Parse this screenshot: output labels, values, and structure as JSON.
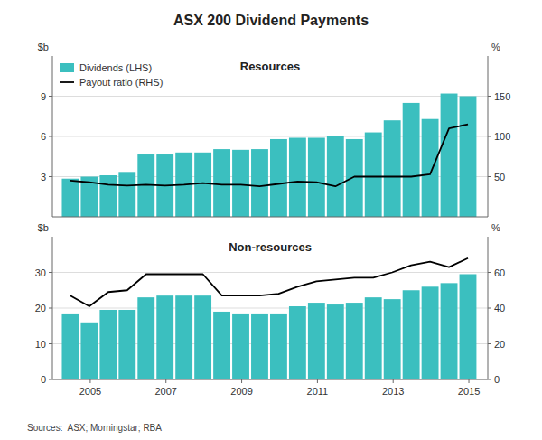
{
  "chart_data": [
    {
      "type": "bar",
      "title": "ASX 200 Dividend Payments",
      "subtitle": "Resources",
      "ylabel": "$b",
      "y2label": "%",
      "x": [
        2004.475,
        2004.975,
        2005.475,
        2005.975,
        2006.475,
        2006.975,
        2007.475,
        2007.975,
        2008.475,
        2008.975,
        2009.475,
        2009.975,
        2010.475,
        2010.975,
        2011.475,
        2011.975,
        2012.475,
        2012.975,
        2013.475,
        2013.975,
        2014.475,
        2014.975
      ],
      "series": [
        {
          "name": "Dividends (LHS)",
          "type": "bar",
          "color": "#3bbfbf",
          "values": [
            2.85,
            3.0,
            3.1,
            3.35,
            4.65,
            4.65,
            4.8,
            4.8,
            5.05,
            5.0,
            5.05,
            5.8,
            5.9,
            5.9,
            6.05,
            5.8,
            6.3,
            7.2,
            8.5,
            7.3,
            9.2,
            9.0
          ]
        },
        {
          "name": "Payout ratio (RHS)",
          "type": "line",
          "axis": "y2",
          "color": "#000000",
          "values": [
            45,
            43,
            40,
            39,
            40,
            39,
            40,
            42,
            40,
            40,
            38,
            41,
            44,
            43,
            38,
            50,
            50,
            50,
            50,
            53,
            110,
            115
          ]
        }
      ],
      "xlim": [
        2004.0,
        2015.5
      ],
      "ylim": [
        0,
        12
      ],
      "yticks": [
        3,
        6,
        9
      ],
      "y2lim": [
        0,
        200
      ],
      "y2ticks": [
        50,
        100,
        150
      ],
      "grid": true,
      "legend": "upper left",
      "tick_labels": "y"
    },
    {
      "type": "bar",
      "subtitle": "Non-resources",
      "ylabel": "$b",
      "y2label": "%",
      "annotations": [
        "Sources:  ASX; Morningstar; RBA"
      ],
      "x": [
        2004.475,
        2004.975,
        2005.475,
        2005.975,
        2006.475,
        2006.975,
        2007.475,
        2007.975,
        2008.475,
        2008.975,
        2009.475,
        2009.975,
        2010.475,
        2010.975,
        2011.475,
        2011.975,
        2012.475,
        2012.975,
        2013.475,
        2013.975,
        2014.475,
        2014.975
      ],
      "series": [
        {
          "type": "bar",
          "color": "#3bbfbf",
          "values": [
            18.5,
            16.0,
            19.5,
            19.5,
            23.0,
            23.5,
            23.5,
            23.5,
            19.0,
            18.5,
            18.5,
            18.5,
            20.5,
            21.5,
            21.0,
            21.5,
            23.0,
            22.5,
            25.0,
            26.0,
            27.0,
            29.5
          ]
        },
        {
          "type": "line",
          "axis": "y2",
          "color": "#000000",
          "values": [
            47,
            41,
            49,
            50,
            59,
            59,
            59,
            59,
            47,
            47,
            47,
            48,
            52,
            55,
            56,
            57,
            57,
            60,
            64,
            66,
            63,
            68
          ]
        }
      ],
      "xlim": [
        2004.0,
        2015.5
      ],
      "xticks": [
        2005,
        2007,
        2009,
        2011,
        2013,
        2015
      ],
      "ylim": [
        0,
        40
      ],
      "yticks": [
        0,
        10,
        20,
        30
      ],
      "y2lim": [
        0,
        80
      ],
      "y2ticks": [
        0,
        20,
        40,
        60
      ],
      "grid": true
    }
  ]
}
